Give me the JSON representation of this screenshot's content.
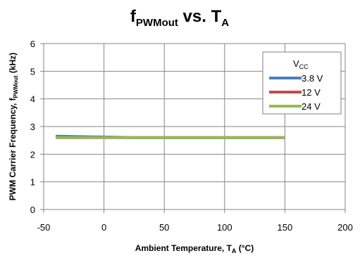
{
  "chart_data": {
    "type": "line",
    "title": {
      "main": "f",
      "main_sub": "PWMout",
      "mid": " vs. T",
      "mid_sub": "A"
    },
    "xlabel": {
      "main": "Ambient Temperature, T",
      "sub": "A",
      "tail": " (°C)"
    },
    "ylabel": {
      "main": "PWM Carrier Frequency, f",
      "sub": "PWMout",
      "tail": " (kHz)"
    },
    "xlim": [
      -50,
      200
    ],
    "ylim": [
      0,
      6
    ],
    "xticks": [
      -50,
      0,
      50,
      100,
      150,
      200
    ],
    "yticks": [
      0,
      1,
      2,
      3,
      4,
      5,
      6
    ],
    "grid": true,
    "legend": {
      "title_main": "V",
      "title_sub": "CC",
      "position": "top-right"
    },
    "series": [
      {
        "name": "3.8 V",
        "color": "#4a7ebb",
        "x": [
          -40,
          0,
          25,
          50,
          85,
          125,
          150
        ],
        "y": [
          2.65,
          2.62,
          2.6,
          2.6,
          2.6,
          2.6,
          2.6
        ]
      },
      {
        "name": "12 V",
        "color": "#be4b48",
        "x": [
          -40,
          0,
          25,
          50,
          85,
          125,
          150
        ],
        "y": [
          2.6,
          2.6,
          2.6,
          2.6,
          2.6,
          2.6,
          2.6
        ]
      },
      {
        "name": "24 V",
        "color": "#98b954",
        "x": [
          -40,
          0,
          25,
          50,
          85,
          125,
          150
        ],
        "y": [
          2.6,
          2.6,
          2.6,
          2.6,
          2.6,
          2.6,
          2.6
        ]
      }
    ]
  }
}
